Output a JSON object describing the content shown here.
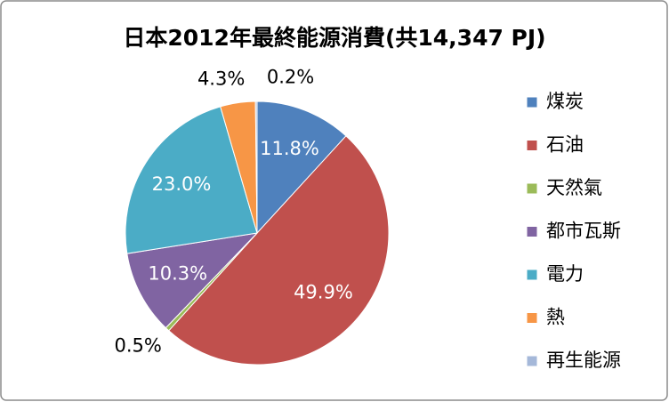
{
  "chart_data": {
    "type": "pie",
    "title": "日本2012年最終能源消費(共14,347 PJ)",
    "categories": [
      "煤炭",
      "石油",
      "天然氣",
      "都市瓦斯",
      "電力",
      "熱",
      "再生能源"
    ],
    "values": [
      11.8,
      49.9,
      0.5,
      10.3,
      23.0,
      4.3,
      0.2
    ],
    "value_labels": [
      "11.8%",
      "49.9%",
      "0.5%",
      "10.3%",
      "23.0%",
      "4.3%",
      "0.2%"
    ],
    "colors": [
      "#4f81bd",
      "#c0504d",
      "#9bbb59",
      "#8064a2",
      "#4bacc6",
      "#f79646",
      "#a5b8d9"
    ],
    "legend": "right"
  }
}
